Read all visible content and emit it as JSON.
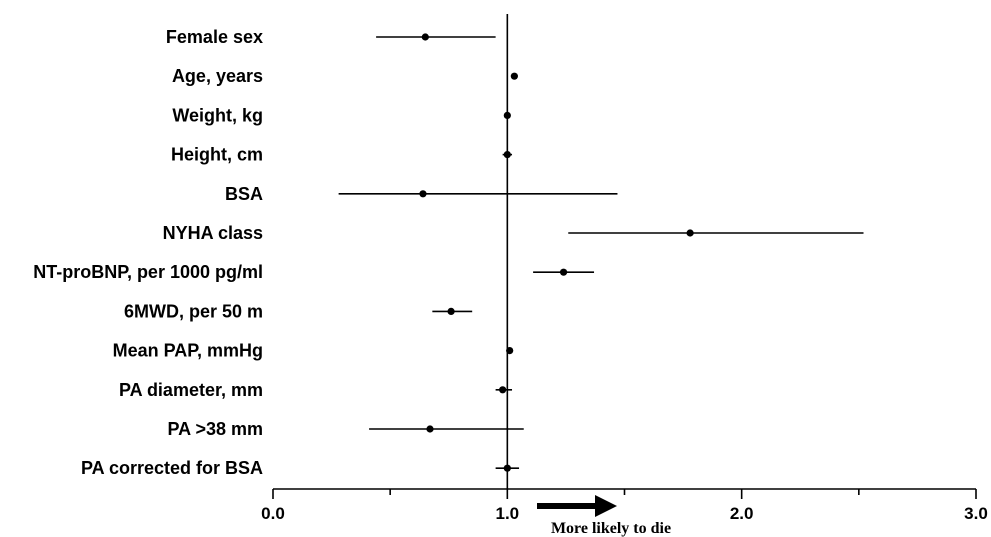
{
  "chart_data": {
    "type": "forest",
    "categories": [
      "Female sex",
      "Age, years",
      "Weight, kg",
      "Height, cm",
      "BSA",
      "NYHA class",
      "NT-proBNP, per 1000 pg/ml",
      "6MWD, per 50 m",
      "Mean PAP, mmHg",
      "PA diameter, mm",
      "PA >38 mm",
      "PA corrected for BSA"
    ],
    "estimates": [
      0.65,
      1.03,
      1.0,
      1.0,
      0.64,
      1.78,
      1.24,
      0.76,
      1.01,
      0.98,
      0.67,
      1.0
    ],
    "ci_lower": [
      0.44,
      1.02,
      0.99,
      0.98,
      0.28,
      1.26,
      1.11,
      0.68,
      1.0,
      0.95,
      0.41,
      0.95
    ],
    "ci_upper": [
      0.95,
      1.04,
      1.01,
      1.02,
      1.47,
      2.52,
      1.37,
      0.85,
      1.02,
      1.02,
      1.07,
      1.05
    ],
    "reference_line": 1.0,
    "xlim": [
      0.0,
      3.0
    ],
    "x_ticks": [
      "0.0",
      "1.0",
      "2.0",
      "3.0"
    ],
    "annotation": "More likely to die",
    "annotation_arrow": "right"
  }
}
